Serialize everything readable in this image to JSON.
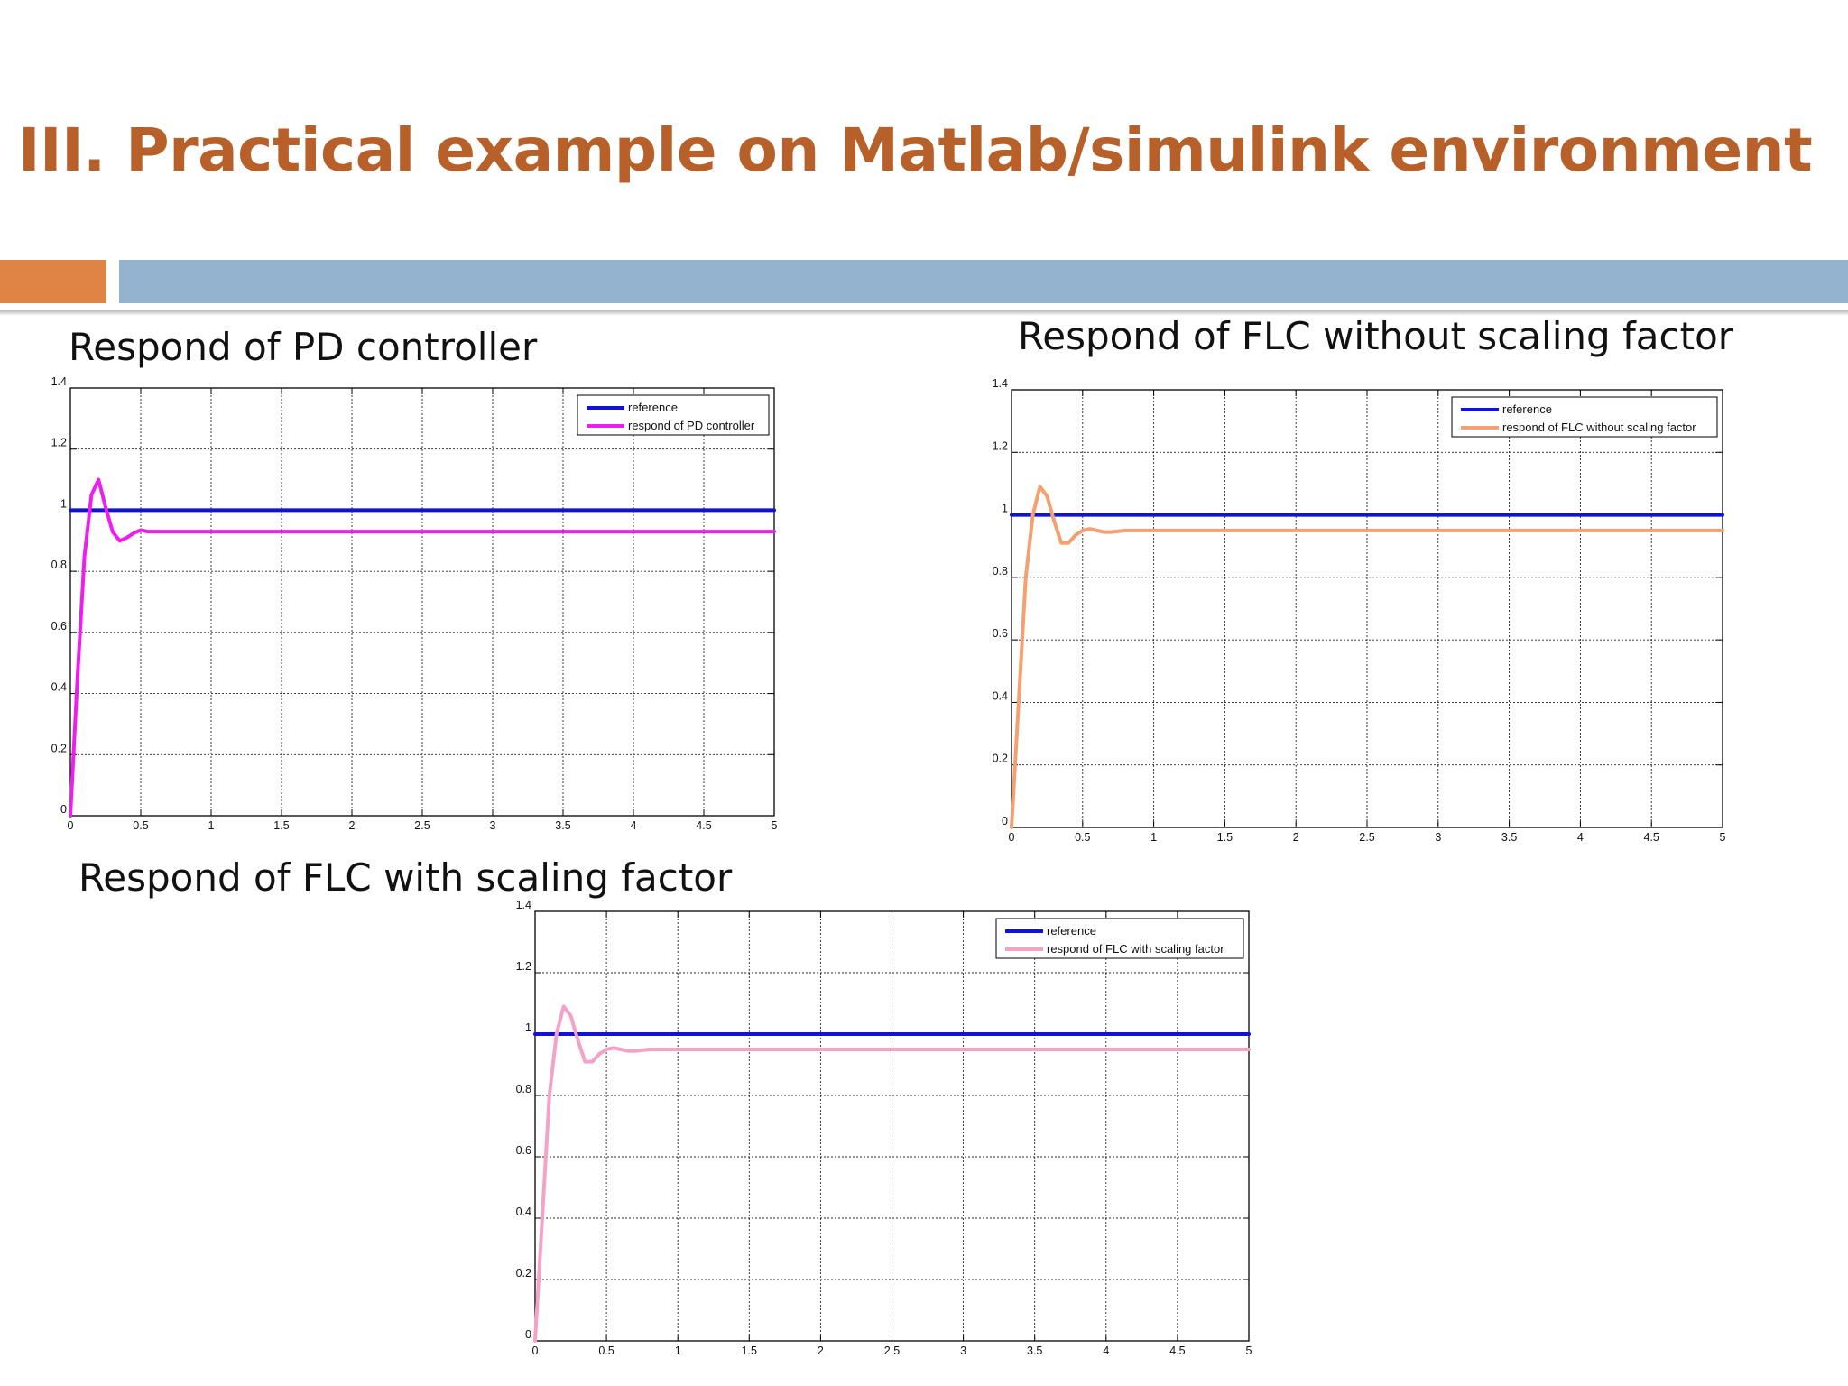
{
  "slide": {
    "title": "III. Practical example on Matlab/simulink environment",
    "colors": {
      "title": "#b8602a",
      "bar_left": "#df8445",
      "bar_right": "#93b3cf"
    }
  },
  "chart_data": [
    {
      "type": "line",
      "heading": "Respond of PD controller",
      "xlim": [
        0,
        5
      ],
      "ylim": [
        0,
        1.4
      ],
      "x_ticks": [
        "0",
        "0.5",
        "1",
        "1.5",
        "2",
        "2.5",
        "3",
        "3.5",
        "4",
        "4.5",
        "5"
      ],
      "y_ticks": [
        "0",
        "0.2",
        "0.4",
        "0.6",
        "0.8",
        "1",
        "1.2",
        "1.4"
      ],
      "grid": true,
      "legend_position": "top-right",
      "series": [
        {
          "name": "reference",
          "color": "#1111d8",
          "x": [
            0,
            5
          ],
          "y": [
            1,
            1
          ]
        },
        {
          "name": "respond of PD controller",
          "color": "#ee1eee",
          "x": [
            0,
            0.05,
            0.1,
            0.15,
            0.2,
            0.25,
            0.3,
            0.35,
            0.4,
            0.45,
            0.5,
            0.55,
            0.6,
            0.7,
            1.0,
            2.0,
            3.0,
            4.0,
            5.0
          ],
          "y": [
            0,
            0.45,
            0.85,
            1.05,
            1.1,
            1.01,
            0.93,
            0.9,
            0.91,
            0.925,
            0.935,
            0.93,
            0.93,
            0.93,
            0.93,
            0.93,
            0.93,
            0.93,
            0.93
          ]
        }
      ]
    },
    {
      "type": "line",
      "heading": "Respond of FLC without scaling factor",
      "xlim": [
        0,
        5
      ],
      "ylim": [
        0,
        1.4
      ],
      "x_ticks": [
        "0",
        "0.5",
        "1",
        "1.5",
        "2",
        "2.5",
        "3",
        "3.5",
        "4",
        "4.5",
        "5"
      ],
      "y_ticks": [
        "0",
        "0.2",
        "0.4",
        "0.6",
        "0.8",
        "1",
        "1.2",
        "1.4"
      ],
      "grid": true,
      "legend_position": "top-right",
      "series": [
        {
          "name": "reference",
          "color": "#1111d8",
          "x": [
            0,
            5
          ],
          "y": [
            1,
            1
          ]
        },
        {
          "name": "respond of FLC without scaling factor",
          "color": "#f5a070",
          "x": [
            0,
            0.05,
            0.1,
            0.15,
            0.2,
            0.25,
            0.3,
            0.35,
            0.4,
            0.45,
            0.5,
            0.55,
            0.6,
            0.65,
            0.7,
            0.8,
            1.0,
            2.0,
            3.0,
            4.0,
            5.0
          ],
          "y": [
            0,
            0.4,
            0.8,
            1.0,
            1.09,
            1.06,
            0.98,
            0.91,
            0.91,
            0.935,
            0.95,
            0.955,
            0.95,
            0.945,
            0.945,
            0.95,
            0.95,
            0.95,
            0.95,
            0.95,
            0.95
          ]
        }
      ]
    },
    {
      "type": "line",
      "heading": "Respond of FLC with scaling factor",
      "xlim": [
        0,
        5
      ],
      "ylim": [
        0,
        1.4
      ],
      "x_ticks": [
        "0",
        "0.5",
        "1",
        "1.5",
        "2",
        "2.5",
        "3",
        "3.5",
        "4",
        "4.5",
        "5"
      ],
      "y_ticks": [
        "0",
        "0.2",
        "0.4",
        "0.6",
        "0.8",
        "1",
        "1.2",
        "1.4"
      ],
      "grid": true,
      "legend_position": "top-right",
      "series": [
        {
          "name": "reference",
          "color": "#1111d8",
          "x": [
            0,
            5
          ],
          "y": [
            1,
            1
          ]
        },
        {
          "name": "respond of FLC with scaling factor",
          "color": "#f4a2c8",
          "x": [
            0,
            0.05,
            0.1,
            0.15,
            0.2,
            0.25,
            0.3,
            0.35,
            0.4,
            0.45,
            0.5,
            0.55,
            0.6,
            0.65,
            0.7,
            0.8,
            1.0,
            2.0,
            3.0,
            4.0,
            5.0
          ],
          "y": [
            0,
            0.4,
            0.8,
            1.0,
            1.09,
            1.06,
            0.98,
            0.91,
            0.91,
            0.935,
            0.95,
            0.955,
            0.95,
            0.945,
            0.945,
            0.95,
            0.95,
            0.95,
            0.95,
            0.95,
            0.95
          ]
        }
      ]
    }
  ]
}
